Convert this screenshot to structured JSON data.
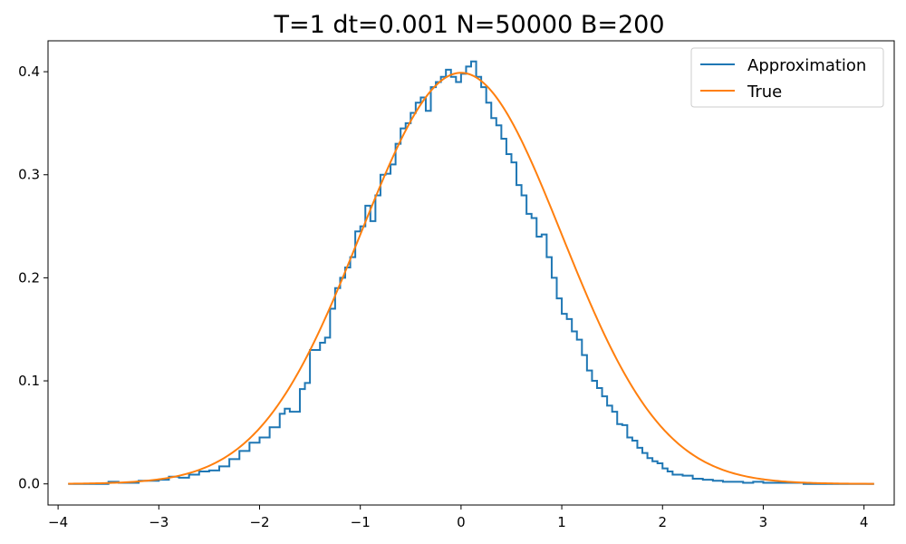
{
  "chart_data": {
    "type": "line",
    "title": "T=1 dt=0.001 N=50000 B=200",
    "xlabel": "",
    "ylabel": "",
    "xlim": [
      -4.1,
      4.3
    ],
    "ylim": [
      -0.0205,
      0.43
    ],
    "xticks": [
      -4,
      -3,
      -2,
      -1,
      0,
      1,
      2,
      3,
      4
    ],
    "xtick_labels": [
      "−4",
      "−3",
      "−2",
      "−1",
      "0",
      "1",
      "2",
      "3",
      "4"
    ],
    "yticks": [
      0.0,
      0.1,
      0.2,
      0.3,
      0.4
    ],
    "ytick_labels": [
      "0.0",
      "0.1",
      "0.2",
      "0.3",
      "0.4"
    ],
    "grid": false,
    "legend_position": "upper right",
    "series": [
      {
        "name": "Approximation",
        "style": "steps",
        "color": "#1f77b4",
        "x": [
          -3.9,
          -3.5,
          -3.4,
          -3.2,
          -3.0,
          -2.9,
          -2.8,
          -2.7,
          -2.6,
          -2.5,
          -2.4,
          -2.3,
          -2.2,
          -2.1,
          -2.0,
          -1.9,
          -1.8,
          -1.75,
          -1.7,
          -1.6,
          -1.55,
          -1.5,
          -1.45,
          -1.4,
          -1.35,
          -1.3,
          -1.25,
          -1.2,
          -1.15,
          -1.1,
          -1.05,
          -1.0,
          -0.95,
          -0.9,
          -0.85,
          -0.8,
          -0.75,
          -0.7,
          -0.65,
          -0.6,
          -0.55,
          -0.5,
          -0.45,
          -0.4,
          -0.35,
          -0.3,
          -0.25,
          -0.2,
          -0.15,
          -0.1,
          -0.05,
          0.0,
          0.05,
          0.1,
          0.15,
          0.2,
          0.25,
          0.3,
          0.35,
          0.4,
          0.45,
          0.5,
          0.55,
          0.6,
          0.65,
          0.7,
          0.75,
          0.8,
          0.85,
          0.9,
          0.95,
          1.0,
          1.05,
          1.1,
          1.15,
          1.2,
          1.25,
          1.3,
          1.35,
          1.4,
          1.45,
          1.5,
          1.55,
          1.6,
          1.65,
          1.7,
          1.75,
          1.8,
          1.85,
          1.9,
          1.95,
          2.0,
          2.05,
          2.1,
          2.2,
          2.3,
          2.4,
          2.5,
          2.6,
          2.7,
          2.8,
          2.9,
          3.0,
          3.2,
          3.4,
          3.6,
          3.8,
          4.1
        ],
        "y": [
          0.0,
          0.002,
          0.001,
          0.003,
          0.004,
          0.007,
          0.006,
          0.009,
          0.012,
          0.013,
          0.017,
          0.024,
          0.032,
          0.04,
          0.045,
          0.055,
          0.068,
          0.073,
          0.07,
          0.092,
          0.098,
          0.13,
          0.13,
          0.137,
          0.142,
          0.17,
          0.19,
          0.2,
          0.21,
          0.22,
          0.245,
          0.25,
          0.27,
          0.255,
          0.28,
          0.3,
          0.301,
          0.31,
          0.33,
          0.345,
          0.35,
          0.36,
          0.37,
          0.375,
          0.362,
          0.385,
          0.39,
          0.395,
          0.402,
          0.395,
          0.39,
          0.398,
          0.405,
          0.41,
          0.395,
          0.385,
          0.37,
          0.355,
          0.348,
          0.335,
          0.32,
          0.312,
          0.29,
          0.28,
          0.262,
          0.258,
          0.24,
          0.242,
          0.22,
          0.2,
          0.18,
          0.165,
          0.16,
          0.148,
          0.14,
          0.125,
          0.11,
          0.1,
          0.093,
          0.085,
          0.076,
          0.07,
          0.058,
          0.057,
          0.045,
          0.042,
          0.035,
          0.03,
          0.025,
          0.022,
          0.02,
          0.015,
          0.012,
          0.009,
          0.008,
          0.005,
          0.004,
          0.003,
          0.002,
          0.002,
          0.001,
          0.002,
          0.001,
          0.001,
          0.0,
          0.0,
          0.0,
          0.0
        ]
      },
      {
        "name": "True",
        "style": "line",
        "color": "#ff7f0e",
        "function": "standard normal pdf",
        "x_range": [
          -3.9,
          4.1
        ]
      }
    ]
  }
}
